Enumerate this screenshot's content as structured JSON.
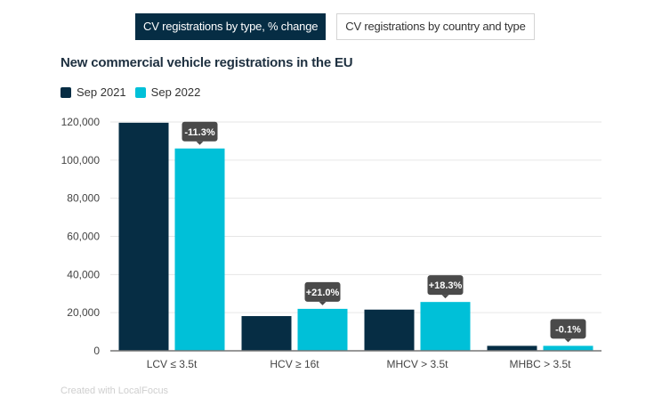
{
  "tabs": [
    {
      "label": "CV registrations by type, % change",
      "active": true
    },
    {
      "label": "CV registrations by country and type",
      "active": false
    }
  ],
  "footer": "Created with LocalFocus",
  "colors": {
    "sep2021": "#062d44",
    "sep2022": "#00c0d8",
    "tooltip": "#4a4a4a",
    "grid": "#e6e6e6",
    "axis": "#777777"
  },
  "chart_data": {
    "type": "bar",
    "title": "New commercial vehicle registrations in the EU",
    "xlabel": "",
    "ylabel": "",
    "ylim": [
      0,
      120000
    ],
    "yticks": [
      0,
      20000,
      40000,
      60000,
      80000,
      100000,
      120000
    ],
    "ytick_labels": [
      "0",
      "20,000",
      "40,000",
      "60,000",
      "80,000",
      "100,000",
      "120,000"
    ],
    "grid": true,
    "legend_position": "top-left",
    "categories": [
      "LCV ≤ 3.5t",
      "HCV ≥ 16t",
      "MHCV > 3.5t",
      "MHBC > 3.5t"
    ],
    "series": [
      {
        "name": "Sep 2021",
        "values": [
          119600,
          18200,
          21600,
          2600
        ]
      },
      {
        "name": "Sep 2022",
        "values": [
          106100,
          22000,
          25600,
          2600
        ]
      }
    ],
    "annotations": [
      "-11.3%",
      "+21.0%",
      "+18.3%",
      "-0.1%"
    ]
  }
}
